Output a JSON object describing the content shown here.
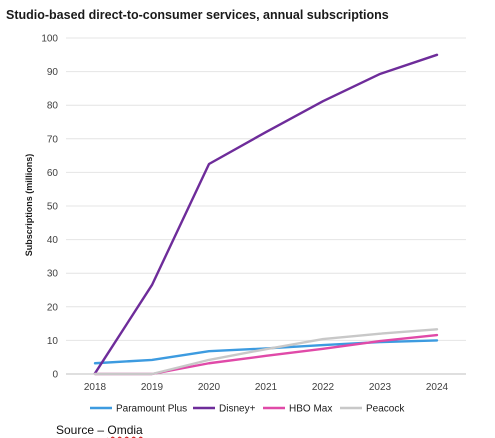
{
  "chart_data": {
    "type": "line",
    "title": "Studio-based direct-to-consumer services, annual subscriptions",
    "ylabel": "Subscriptions (millions)",
    "xlabel": "",
    "x": [
      "2018",
      "2019",
      "2020",
      "2021",
      "2022",
      "2023",
      "2024"
    ],
    "ylim": [
      0,
      100
    ],
    "yticks": [
      0,
      10,
      20,
      30,
      40,
      50,
      60,
      70,
      80,
      90,
      100
    ],
    "grid": "horizontal",
    "legend_position": "bottom",
    "series": [
      {
        "name": "Paramount Plus",
        "color": "#3d9be0",
        "values": [
          3.2,
          4.2,
          6.8,
          7.6,
          8.6,
          9.5,
          10.0
        ]
      },
      {
        "name": "Disney+",
        "color": "#6e2c9a",
        "values": [
          0.2,
          26.5,
          62.5,
          72.0,
          81.2,
          89.3,
          95.0
        ]
      },
      {
        "name": "HBO Max",
        "color": "#e04aa8",
        "values": [
          0.0,
          0.0,
          3.2,
          5.4,
          7.5,
          9.8,
          11.6
        ]
      },
      {
        "name": "Peacock",
        "color": "#c8c8c8",
        "values": [
          0.0,
          0.0,
          4.2,
          7.4,
          10.4,
          12.0,
          13.3
        ]
      }
    ]
  },
  "source": {
    "prefix": "Source – ",
    "brand": "Omdia"
  }
}
